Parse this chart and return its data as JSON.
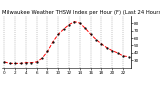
{
  "title": "Milwaukee Weather THSW Index per Hour (F) (Last 24 Hours)",
  "x_values": [
    0,
    1,
    2,
    3,
    4,
    5,
    6,
    7,
    8,
    9,
    10,
    11,
    12,
    13,
    14,
    15,
    16,
    17,
    18,
    19,
    20,
    21,
    22,
    23
  ],
  "y_values": [
    28,
    26,
    26,
    26,
    27,
    27,
    28,
    33,
    42,
    55,
    65,
    72,
    78,
    82,
    80,
    73,
    65,
    58,
    52,
    47,
    43,
    40,
    36,
    35
  ],
  "line_color": "#ff0000",
  "marker_color": "#000000",
  "bg_color": "#ffffff",
  "plot_bg_color": "#ffffff",
  "grid_color": "#888888",
  "ylim": [
    20,
    90
  ],
  "yticks": [
    30,
    40,
    50,
    60,
    70,
    80
  ],
  "xlim": [
    -0.5,
    23.5
  ],
  "xticks": [
    0,
    2,
    4,
    6,
    8,
    10,
    12,
    14,
    16,
    18,
    20,
    22
  ],
  "xtick_labels": [
    "0",
    "2",
    "4",
    "6",
    "8",
    "10",
    "12",
    "14",
    "16",
    "18",
    "20",
    "22"
  ],
  "title_fontsize": 3.8,
  "tick_fontsize": 3.0,
  "linewidth": 0.7,
  "markersize": 1.2,
  "grid_linewidth": 0.35
}
